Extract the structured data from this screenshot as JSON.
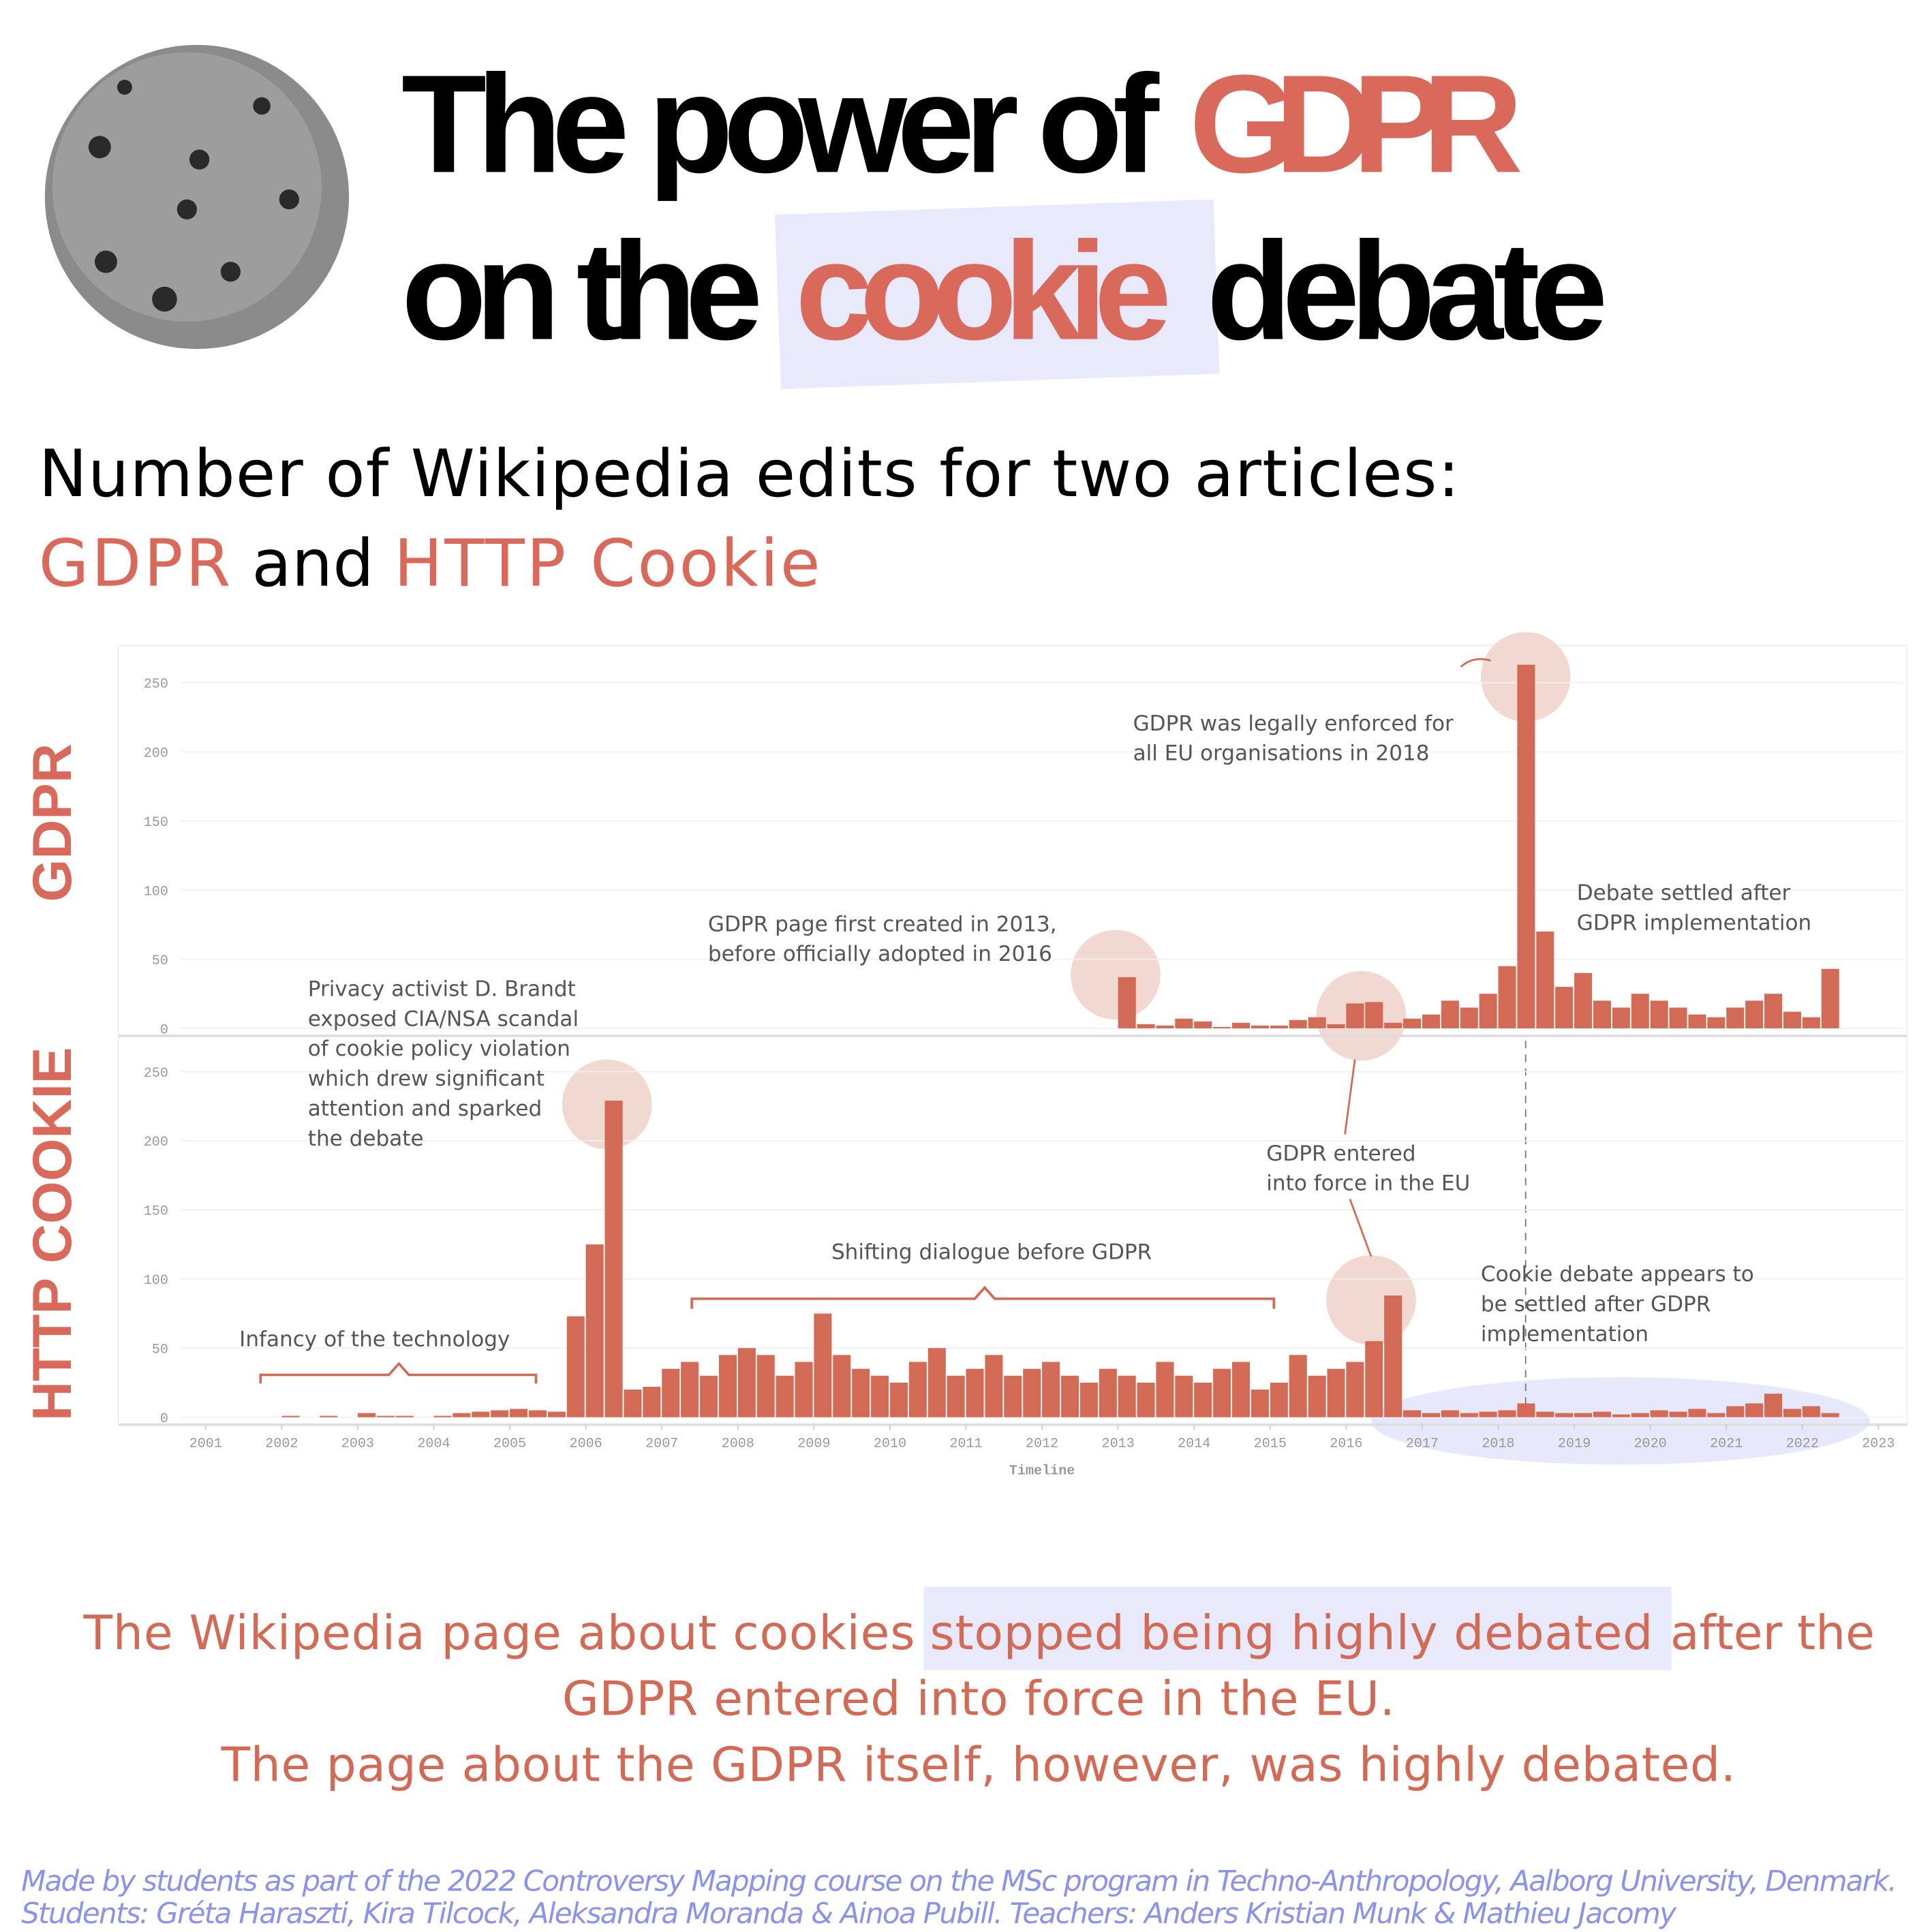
{
  "header": {
    "title_line1": [
      "The power of",
      "GDPR"
    ],
    "title_line2": [
      "on the",
      "cookie",
      "debate"
    ],
    "subtitle_line1": "Number of Wikipedia edits for two articles:",
    "subtitle_line2": [
      "GDPR",
      "and",
      "HTTP Cookie"
    ]
  },
  "chart_data": [
    {
      "type": "bar",
      "title": "GDPR",
      "color": "#d26a55",
      "xlim": [
        2001,
        2023
      ],
      "ylim": [
        0,
        275
      ],
      "yticks": [
        0,
        50,
        100,
        150,
        200,
        250
      ],
      "grid": true,
      "x": [
        2013,
        2013.25,
        2013.5,
        2013.75,
        2014,
        2014.25,
        2014.5,
        2014.75,
        2015,
        2015.25,
        2015.5,
        2015.75,
        2016,
        2016.25,
        2016.5,
        2016.75,
        2017,
        2017.25,
        2017.5,
        2017.75,
        2018,
        2018.25,
        2018.5,
        2018.75,
        2019,
        2019.25,
        2019.5,
        2019.75,
        2020,
        2020.25,
        2020.5,
        2020.75,
        2021,
        2021.25,
        2021.5,
        2021.75,
        2022,
        2022.25
      ],
      "values": [
        37,
        3,
        2,
        7,
        5,
        1,
        4,
        2,
        2,
        6,
        8,
        3,
        18,
        19,
        4,
        7,
        10,
        20,
        15,
        25,
        45,
        263,
        70,
        30,
        40,
        20,
        15,
        25,
        20,
        15,
        10,
        8,
        15,
        20,
        25,
        12,
        8,
        43
      ],
      "annotations": [
        {
          "lines": [
            "GDPR was legally enforced for",
            "all EU organisations in 2018"
          ]
        },
        {
          "lines": [
            "Debate settled after",
            "GDPR implementation"
          ]
        },
        {
          "lines": [
            "GDPR page first created in 2013,",
            "before officially adopted in 2016"
          ]
        }
      ]
    },
    {
      "type": "bar",
      "title": "HTTP COOKIE",
      "color": "#d26a55",
      "xlim": [
        2001,
        2023
      ],
      "ylim": [
        0,
        275
      ],
      "yticks": [
        0,
        50,
        100,
        150,
        200,
        250
      ],
      "grid": true,
      "xticks": [
        2001,
        2002,
        2003,
        2004,
        2005,
        2006,
        2007,
        2008,
        2009,
        2010,
        2011,
        2012,
        2013,
        2014,
        2015,
        2016,
        2017,
        2018,
        2019,
        2020,
        2021,
        2022,
        2023
      ],
      "xlabel": "Timeline",
      "x": [
        2002,
        2002.25,
        2002.5,
        2002.75,
        2003,
        2003.25,
        2003.5,
        2003.75,
        2004,
        2004.25,
        2004.5,
        2004.75,
        2005,
        2005.25,
        2005.5,
        2005.75,
        2006,
        2006.25,
        2006.5,
        2006.75,
        2007,
        2007.25,
        2007.5,
        2007.75,
        2008,
        2008.25,
        2008.5,
        2008.75,
        2009,
        2009.25,
        2009.5,
        2009.75,
        2010,
        2010.25,
        2010.5,
        2010.75,
        2011,
        2011.25,
        2011.5,
        2011.75,
        2012,
        2012.25,
        2012.5,
        2012.75,
        2013,
        2013.25,
        2013.5,
        2013.75,
        2014,
        2014.25,
        2014.5,
        2014.75,
        2015,
        2015.25,
        2015.5,
        2015.75,
        2016,
        2016.25,
        2016.5,
        2016.75,
        2017,
        2017.25,
        2017.5,
        2017.75,
        2018,
        2018.25,
        2018.5,
        2018.75,
        2019,
        2019.25,
        2019.5,
        2019.75,
        2020,
        2020.25,
        2020.5,
        2020.75,
        2021,
        2021.25,
        2021.5,
        2021.75,
        2022,
        2022.25
      ],
      "values": [
        1,
        0,
        1,
        0,
        3,
        1,
        1,
        0,
        1,
        3,
        4,
        5,
        6,
        5,
        4,
        73,
        125,
        229,
        20,
        22,
        35,
        40,
        30,
        45,
        50,
        45,
        30,
        40,
        75,
        45,
        35,
        30,
        25,
        40,
        50,
        30,
        35,
        45,
        30,
        35,
        40,
        30,
        25,
        35,
        30,
        25,
        40,
        30,
        25,
        35,
        40,
        20,
        25,
        45,
        30,
        35,
        40,
        55,
        88,
        5,
        3,
        5,
        3,
        4,
        5,
        10,
        4,
        3,
        3,
        4,
        2,
        3,
        5,
        4,
        6,
        3,
        8,
        10,
        17,
        6,
        8,
        3
      ],
      "annotations": [
        {
          "lines": [
            "Privacy activist D. Brandt",
            "exposed CIA/NSA scandal",
            "of cookie policy violation",
            "which drew significant",
            "attention and sparked",
            "the debate"
          ]
        },
        {
          "lines": [
            "Infancy of the technology"
          ]
        },
        {
          "lines": [
            "Shifting dialogue before GDPR"
          ]
        },
        {
          "lines": [
            "GDPR entered",
            "into force in the EU"
          ]
        },
        {
          "lines": [
            "Cookie debate appears to",
            "be settled after GDPR",
            "implementation"
          ]
        }
      ]
    }
  ],
  "conclusion": {
    "line1": [
      "The Wikipedia page about cookies",
      "stopped being highly debated",
      "after the"
    ],
    "line2": "GDPR entered into force in the EU.",
    "line3": "The page about the GDPR itself, however, was highly debated."
  },
  "footer": [
    "Made by students as part of the 2022 Controversy Mapping course on the MSc program in Techno-Anthropology, Aalborg University, Denmark.",
    "Students: Gréta Haraszti, Kira Tilcock, Aleksandra Moranda & Ainoa Pubill. Teachers: Anders Kristian Munk & Mathieu Jacomy"
  ]
}
